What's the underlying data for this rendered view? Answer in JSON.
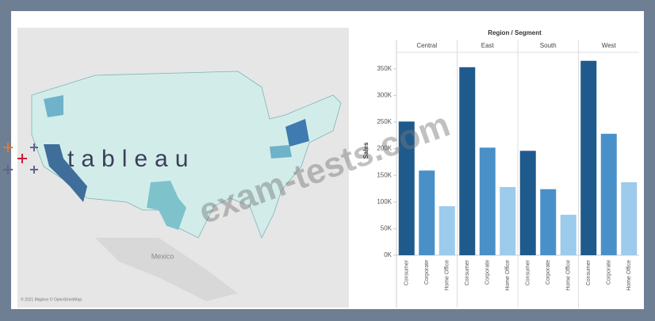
{
  "logo": "tableau",
  "watermark": "exam-tests.com",
  "map": {
    "label": "Mexico",
    "attribution": "© 2021 Mapbox © OpenStreetMap"
  },
  "chart_data": {
    "type": "bar",
    "title": "Region / Segment",
    "y_label": "Sales",
    "categories": [
      "Central",
      "East",
      "South",
      "West"
    ],
    "series": [
      {
        "name": "Consumer",
        "color": "#1f5a8c",
        "values": [
          251000,
          353000,
          196000,
          365000
        ]
      },
      {
        "name": "Corporate",
        "color": "#4a90c8",
        "values": [
          159000,
          202000,
          124000,
          228000
        ]
      },
      {
        "name": "Home Office",
        "color": "#9ccbec",
        "values": [
          92000,
          128000,
          76000,
          137000
        ]
      }
    ],
    "ylim": [
      0,
      378000
    ],
    "yticks": [
      {
        "value": 0,
        "label": "0K"
      },
      {
        "value": 50000,
        "label": "50K"
      },
      {
        "value": 100000,
        "label": "100K"
      },
      {
        "value": 150000,
        "label": "150K"
      },
      {
        "value": 200000,
        "label": "200K"
      },
      {
        "value": 250000,
        "label": "250K"
      },
      {
        "value": 300000,
        "label": "300K"
      },
      {
        "value": 350000,
        "label": "350K"
      }
    ]
  }
}
